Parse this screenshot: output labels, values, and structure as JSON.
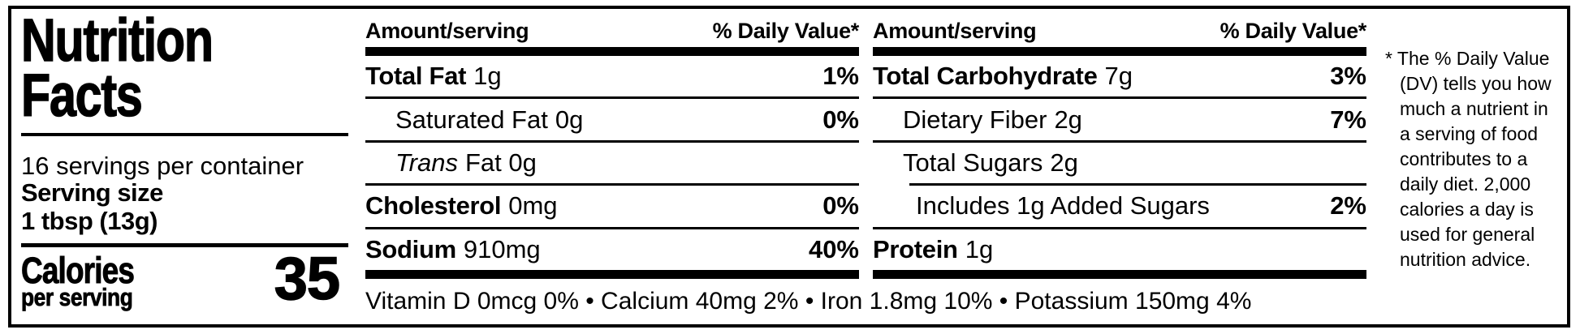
{
  "panel": {
    "title_line1": "Nutrition",
    "title_line2": "Facts",
    "servings_per_container": "16 servings per container",
    "serving_size_label": "Serving size",
    "serving_size_value": "1 tbsp (13g)",
    "calories_label": "Calories",
    "calories_sublabel": "per serving",
    "calories_value": "35"
  },
  "columns": [
    {
      "header_left": "Amount/serving",
      "header_right": "% Daily Value*",
      "rows": [
        {
          "name": "Total Fat",
          "amount": "1g",
          "dv": "1%",
          "bold": true,
          "indent": 0
        },
        {
          "name": "Saturated Fat",
          "amount": "0g",
          "dv": "0%",
          "bold": false,
          "indent": 1
        },
        {
          "name": "Trans",
          "amount": "Fat 0g",
          "dv": "",
          "bold": false,
          "indent": 1,
          "italic_name": true
        },
        {
          "name": "Cholesterol",
          "amount": "0mg",
          "dv": "0%",
          "bold": true,
          "indent": 0
        },
        {
          "name": "Sodium",
          "amount": "910mg",
          "dv": "40%",
          "bold": true,
          "indent": 0
        }
      ]
    },
    {
      "header_left": "Amount/serving",
      "header_right": "% Daily Value*",
      "rows": [
        {
          "name": "Total Carbohydrate",
          "amount": "7g",
          "dv": "3%",
          "bold": true,
          "indent": 0
        },
        {
          "name": "Dietary Fiber",
          "amount": "2g",
          "dv": "7%",
          "bold": false,
          "indent": 1
        },
        {
          "name": "Total Sugars",
          "amount": "2g",
          "dv": "",
          "bold": false,
          "indent": 1,
          "rule_below_indented": true
        },
        {
          "name": "Includes 1g Added Sugars",
          "amount": "",
          "dv": "2%",
          "bold": false,
          "indent": 2
        },
        {
          "name": "Protein",
          "amount": "1g",
          "dv": "",
          "bold": true,
          "indent": 0
        }
      ]
    }
  ],
  "micronutrients": "Vitamin D 0mcg 0% • Calcium 40mg 2% • Iron 1.8mg 10% • Potassium 150mg 4%",
  "footnote": "* The % Daily Value\n(DV) tells you how\nmuch a nutrient in\na serving of food\ncontributes to a\ndaily diet. 2,000\ncalories a day is\nused for general\nnutrition advice.",
  "colors": {
    "ink": "#000000",
    "background": "#ffffff"
  }
}
